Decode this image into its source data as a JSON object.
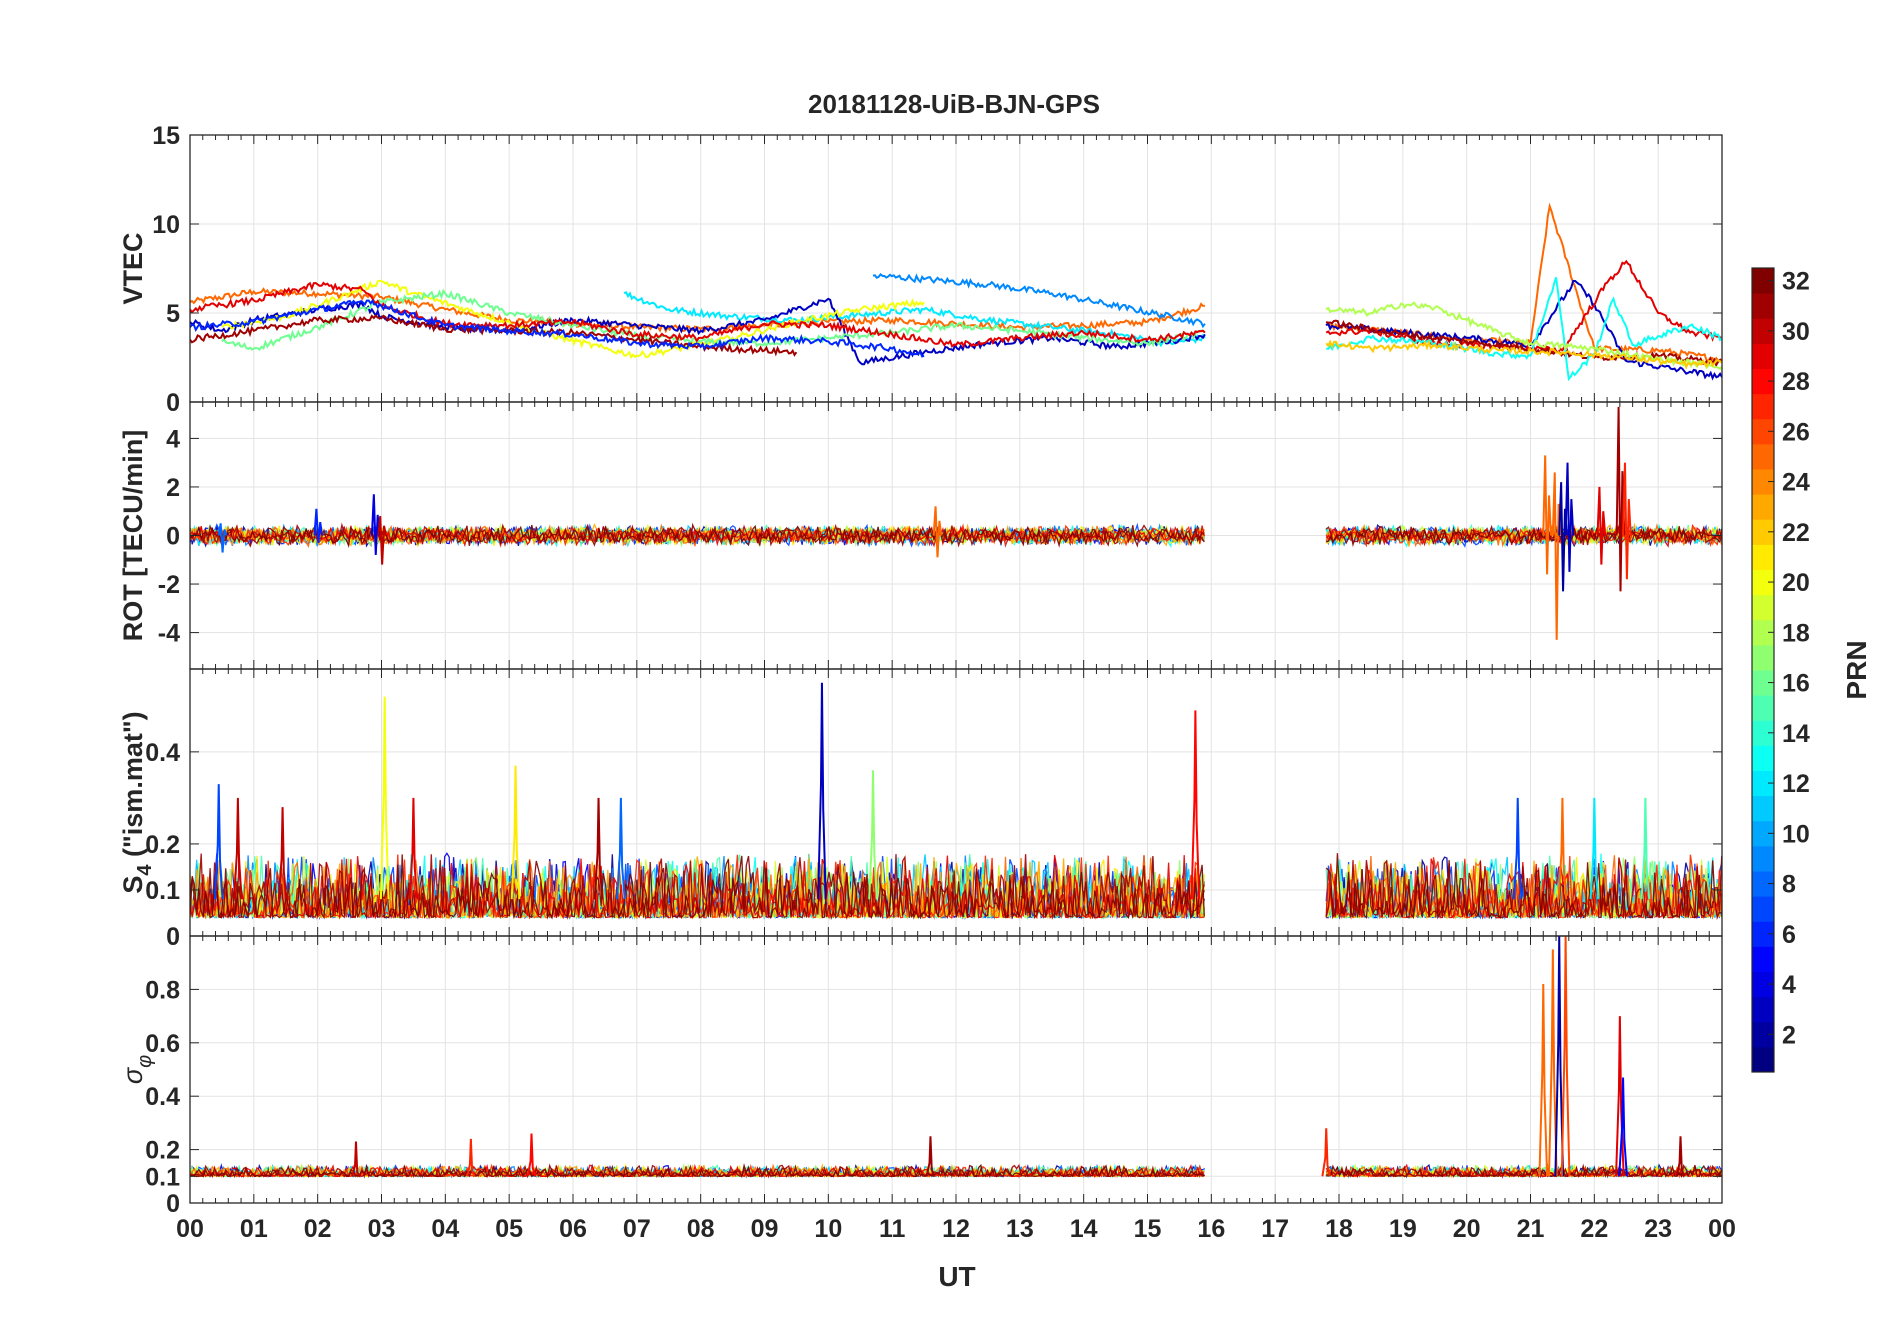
{
  "figure": {
    "title": "20181128-UiB-BJN-GPS",
    "xlabel": "UT"
  },
  "chart_data": [
    {
      "type": "line",
      "panel": "vtec",
      "ylabel": "VTEC",
      "ylim": [
        0,
        15
      ],
      "yticks": [
        0,
        5,
        10,
        15
      ],
      "xlim": [
        0,
        24
      ],
      "grid": true,
      "series": [
        {
          "prn": 25,
          "x": [
            0,
            1,
            2,
            3,
            4,
            5,
            6,
            7,
            8,
            9,
            10,
            11,
            12,
            13,
            14,
            15,
            15.9,
            17.8,
            19,
            20,
            21,
            21.3,
            22,
            23,
            24
          ],
          "y": [
            5.6,
            6.2,
            6.1,
            5.9,
            5.2,
            4.6,
            4.4,
            4.2,
            4.1,
            4.3,
            4.5,
            4.6,
            4.4,
            4.2,
            4.3,
            4.5,
            5.4,
            4.3,
            3.9,
            3.5,
            3.3,
            11.0,
            3.0,
            2.9,
            2.4
          ]
        },
        {
          "prn": 12,
          "x": [
            6.8,
            7.5,
            8.5,
            9.5,
            10.5,
            11.5,
            12.5,
            13.5,
            14.5,
            15.3,
            15.9
          ],
          "y": [
            6.1,
            5.2,
            4.8,
            4.6,
            4.9,
            5.2,
            4.6,
            4.2,
            3.8,
            3.3,
            3.6
          ]
        },
        {
          "prn": 9,
          "x": [
            10.7,
            11.5,
            12.5,
            13.5,
            14.5,
            15.5,
            15.9
          ],
          "y": [
            7.1,
            6.9,
            6.6,
            6.1,
            5.4,
            4.7,
            4.4
          ]
        },
        {
          "prn": 3,
          "x": [
            0,
            0.5,
            1,
            2,
            2.7,
            3,
            4,
            5,
            6,
            7,
            8,
            9,
            9.5,
            10,
            10.5,
            11.5,
            12.5,
            13.5,
            14.5,
            15.5,
            15.9,
            17.8,
            19,
            20,
            21,
            21.7,
            22,
            22.5,
            23.5,
            24
          ],
          "y": [
            4.5,
            4.0,
            4.6,
            5.2,
            5.5,
            4.8,
            4.2,
            4.0,
            4.6,
            4.3,
            4.0,
            4.6,
            5.2,
            5.8,
            2.2,
            2.8,
            3.3,
            3.6,
            3.1,
            3.5,
            3.8,
            4.3,
            3.9,
            3.6,
            3.2,
            6.8,
            5.5,
            2.3,
            1.7,
            1.4
          ]
        },
        {
          "prn": 20,
          "x": [
            0.5,
            1.5,
            2.5,
            3,
            3.5,
            4.5,
            5.5,
            6.5,
            7,
            7.5,
            8.5,
            9.5,
            10.5,
            11.5
          ],
          "y": [
            4.2,
            4.8,
            6.1,
            6.8,
            6.1,
            5.0,
            3.9,
            3.0,
            2.6,
            2.9,
            3.6,
            4.5,
            5.2,
            5.6
          ]
        },
        {
          "prn": 16,
          "x": [
            0.5,
            1,
            2,
            3,
            4,
            5,
            6,
            7,
            8,
            9,
            10,
            11,
            12,
            13,
            14,
            15,
            15.9
          ],
          "y": [
            3.4,
            3.0,
            4.2,
            5.6,
            6.1,
            5.0,
            4.3,
            3.7,
            3.4,
            3.3,
            3.6,
            3.9,
            4.3,
            4.0,
            3.6,
            3.3,
            3.9
          ]
        },
        {
          "prn": 29,
          "x": [
            0,
            1,
            2,
            2.7,
            3,
            4,
            5,
            6,
            7,
            8,
            9,
            10,
            11,
            12,
            13,
            14,
            15,
            15.9,
            17.8,
            18.5,
            19.5,
            20.5,
            21.5,
            22.2,
            22.5,
            23,
            23.5,
            24
          ],
          "y": [
            5.2,
            5.7,
            6.6,
            6.3,
            5.4,
            4.4,
            4.3,
            4.5,
            3.8,
            3.6,
            4.4,
            4.3,
            3.8,
            3.2,
            3.6,
            3.9,
            3.5,
            3.9,
            3.9,
            4.0,
            3.3,
            3.1,
            2.9,
            6.7,
            7.9,
            5.0,
            3.9,
            3.6
          ]
        },
        {
          "prn": 31,
          "x": [
            0,
            1,
            2,
            3,
            4,
            5,
            6,
            7,
            8,
            9,
            9.5,
            17.8,
            19,
            20,
            21,
            22,
            23,
            24
          ],
          "y": [
            3.5,
            4.0,
            4.6,
            4.7,
            4.1,
            4.0,
            3.9,
            3.5,
            3.1,
            2.9,
            2.8,
            4.5,
            3.8,
            3.4,
            3.0,
            2.5,
            2.6,
            2.2
          ]
        },
        {
          "prn": 6,
          "x": [
            0,
            1,
            2,
            2.8,
            3,
            4,
            5,
            6,
            7,
            8,
            9,
            10,
            11,
            11.5
          ],
          "y": [
            4.2,
            4.5,
            5.2,
            5.7,
            5.4,
            4.3,
            4.0,
            3.8,
            3.3,
            3.1,
            3.6,
            3.4,
            3.0,
            2.6
          ]
        },
        {
          "prn": 13,
          "x": [
            17.8,
            18.5,
            19.5,
            20,
            20.5,
            21,
            21.4,
            21.6,
            22,
            22.3,
            22.6,
            23,
            23.5,
            24
          ],
          "y": [
            3.0,
            3.6,
            3.3,
            3.0,
            2.7,
            2.6,
            7.0,
            1.3,
            2.7,
            5.8,
            3.2,
            3.7,
            4.3,
            3.6
          ]
        },
        {
          "prn": 18,
          "x": [
            17.8,
            18.5,
            19,
            19.5,
            20,
            20.5,
            21,
            22,
            23,
            24
          ],
          "y": [
            5.2,
            5.0,
            5.5,
            5.3,
            4.6,
            3.9,
            3.3,
            3.0,
            2.4,
            2.0
          ]
        },
        {
          "prn": 22,
          "x": [
            17.8,
            18.5,
            19.5,
            20.5,
            21.5,
            22.5,
            23.5,
            24
          ],
          "y": [
            3.3,
            3.0,
            3.2,
            2.9,
            2.8,
            2.5,
            2.1,
            2.2
          ]
        }
      ]
    },
    {
      "type": "line",
      "panel": "rot",
      "ylabel": "ROT [TECU/min]",
      "ylim": [
        -5.5,
        5.5
      ],
      "yticks": [
        -4,
        -2,
        0,
        2,
        4
      ],
      "xlim": [
        0,
        24
      ],
      "grid": true,
      "noise_band": {
        "x_ranges": [
          [
            0,
            15.9
          ],
          [
            17.8,
            24
          ]
        ],
        "typical_amplitude": 0.3
      },
      "spikes": [
        {
          "x": 0.5,
          "min": -0.7,
          "max": 0.5,
          "prn": 8
        },
        {
          "x": 2.0,
          "min": -0.3,
          "max": 1.1,
          "prn": 6
        },
        {
          "x": 2.9,
          "min": -0.8,
          "max": 1.7,
          "prn": 4
        },
        {
          "x": 3.0,
          "min": -1.2,
          "max": 0.8,
          "prn": 30
        },
        {
          "x": 11.7,
          "min": -0.9,
          "max": 1.2,
          "prn": 25
        },
        {
          "x": 21.25,
          "min": -1.6,
          "max": 3.3,
          "prn": 25
        },
        {
          "x": 21.4,
          "min": -4.3,
          "max": 2.6,
          "prn": 25
        },
        {
          "x": 21.5,
          "min": -2.3,
          "max": 2.2,
          "prn": 2
        },
        {
          "x": 21.6,
          "min": -1.5,
          "max": 3.0,
          "prn": 3
        },
        {
          "x": 22.1,
          "min": -1.2,
          "max": 2.0,
          "prn": 29
        },
        {
          "x": 22.4,
          "min": -2.3,
          "max": 5.3,
          "prn": 31
        },
        {
          "x": 22.5,
          "min": -1.8,
          "max": 3.0,
          "prn": 27
        }
      ]
    },
    {
      "type": "line",
      "panel": "s4",
      "ylabel": "S4 (\"ism.mat\")",
      "ylabel_main": "S",
      "ylabel_sub": "4",
      "ylabel_rest": " (\"ism.mat\")",
      "ylim": [
        0,
        0.58
      ],
      "yticks": [
        0,
        0.1,
        0.2,
        0.4
      ],
      "ytick_labels": [
        "0",
        "0.1",
        "0.2",
        "0.4"
      ],
      "xlim": [
        0,
        24
      ],
      "grid": true,
      "noise_band": {
        "x_ranges": [
          [
            0,
            15.9
          ],
          [
            17.8,
            24
          ]
        ],
        "base": 0.04,
        "typical_amplitude": 0.1
      },
      "spikes": [
        {
          "x": 0.45,
          "max": 0.33,
          "prn": 7
        },
        {
          "x": 0.75,
          "max": 0.3,
          "prn": 30
        },
        {
          "x": 1.45,
          "max": 0.28,
          "prn": 30
        },
        {
          "x": 3.05,
          "max": 0.52,
          "prn": 20
        },
        {
          "x": 3.5,
          "max": 0.3,
          "prn": 29
        },
        {
          "x": 5.1,
          "max": 0.37,
          "prn": 21
        },
        {
          "x": 6.4,
          "max": 0.3,
          "prn": 31
        },
        {
          "x": 6.75,
          "max": 0.3,
          "prn": 8
        },
        {
          "x": 9.9,
          "max": 0.55,
          "prn": 3
        },
        {
          "x": 10.7,
          "max": 0.36,
          "prn": 17
        },
        {
          "x": 15.75,
          "max": 0.49,
          "prn": 28
        },
        {
          "x": 20.8,
          "max": 0.3,
          "prn": 7
        },
        {
          "x": 21.5,
          "max": 0.3,
          "prn": 25
        },
        {
          "x": 22.0,
          "max": 0.3,
          "prn": 12
        },
        {
          "x": 22.8,
          "max": 0.3,
          "prn": 15
        }
      ]
    },
    {
      "type": "line",
      "panel": "sigma_phi",
      "ylabel": "σ_φ",
      "ylabel_main": "σ",
      "ylabel_sub": "φ",
      "ylim": [
        0,
        1.0
      ],
      "yticks": [
        0,
        0.1,
        0.2,
        0.4,
        0.6,
        0.8
      ],
      "ytick_labels": [
        "0",
        "0.1",
        "0.2",
        "0.4",
        "0.6",
        "0.8"
      ],
      "xlim": [
        0,
        24
      ],
      "grid": true,
      "noise_band": {
        "x_ranges": [
          [
            0,
            15.9
          ],
          [
            17.8,
            24
          ]
        ],
        "base": 0.1,
        "typical_amplitude": 0.03
      },
      "spikes": [
        {
          "x": 2.6,
          "max": 0.23,
          "prn": 30
        },
        {
          "x": 4.4,
          "max": 0.24,
          "prn": 27
        },
        {
          "x": 5.35,
          "max": 0.26,
          "prn": 28
        },
        {
          "x": 11.6,
          "max": 0.25,
          "prn": 31
        },
        {
          "x": 17.8,
          "max": 0.28,
          "prn": 27
        },
        {
          "x": 21.2,
          "max": 0.82,
          "prn": 25
        },
        {
          "x": 21.35,
          "max": 0.95,
          "prn": 25
        },
        {
          "x": 21.45,
          "max": 1.0,
          "prn": 2
        },
        {
          "x": 21.55,
          "max": 1.0,
          "prn": 26
        },
        {
          "x": 22.4,
          "max": 0.7,
          "prn": 29
        },
        {
          "x": 22.45,
          "max": 0.47,
          "prn": 5
        },
        {
          "x": 23.35,
          "max": 0.25,
          "prn": 31
        }
      ]
    }
  ],
  "x_axis": {
    "ticks": [
      0,
      1,
      2,
      3,
      4,
      5,
      6,
      7,
      8,
      9,
      10,
      11,
      12,
      13,
      14,
      15,
      16,
      17,
      18,
      19,
      20,
      21,
      22,
      23,
      24
    ],
    "tick_labels": [
      "00",
      "01",
      "02",
      "03",
      "04",
      "05",
      "06",
      "07",
      "08",
      "09",
      "10",
      "11",
      "12",
      "13",
      "14",
      "15",
      "16",
      "17",
      "18",
      "19",
      "20",
      "21",
      "22",
      "23",
      "00"
    ]
  },
  "colorbar": {
    "label": "PRN",
    "min": 1,
    "max": 32,
    "ticks": [
      2,
      4,
      6,
      8,
      10,
      12,
      14,
      16,
      18,
      20,
      22,
      24,
      26,
      28,
      30,
      32
    ],
    "colormap": "jet",
    "levels": 32
  },
  "colors": {
    "grid": "#e3e3e3",
    "axis": "#262626",
    "text": "#262626"
  }
}
